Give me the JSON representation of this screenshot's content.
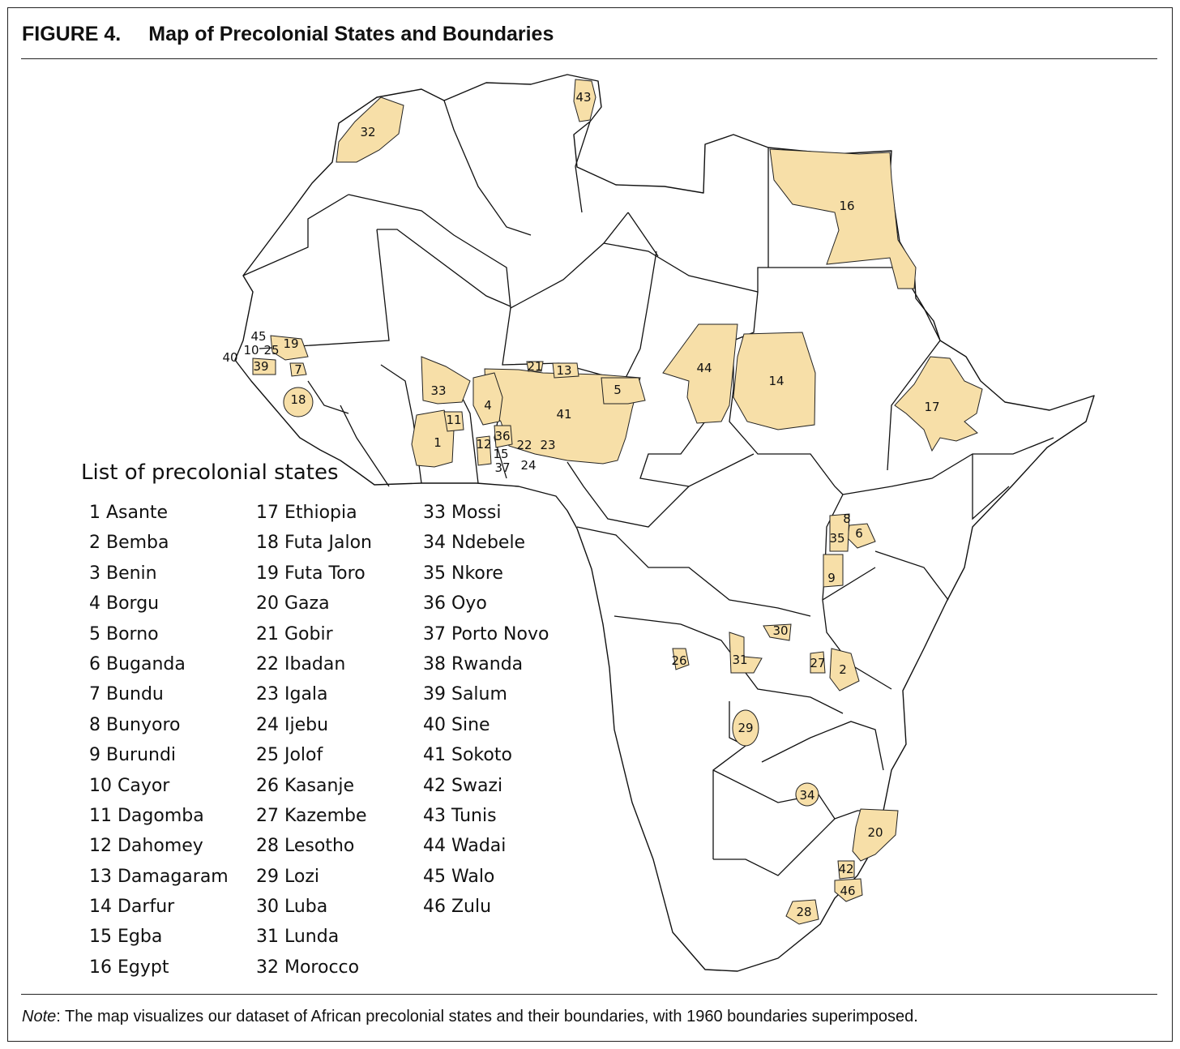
{
  "figure": {
    "number": "FIGURE 4.",
    "title": "Map of Precolonial States and Boundaries"
  },
  "note": {
    "prefix": "Note",
    "text": ": The map visualizes our dataset of African precolonial states and their boundaries, with 1960 boundaries superimposed."
  },
  "legend": {
    "title": "List of precolonial states",
    "columns": [
      [
        "1 Asante",
        "2 Bemba",
        "3 Benin",
        "4 Borgu",
        "5 Borno",
        "6 Buganda",
        "7 Bundu",
        "8 Bunyoro",
        "9 Burundi",
        "10 Cayor",
        "11 Dagomba",
        "12 Dahomey",
        "13 Damagaram",
        "14 Darfur",
        "15 Egba",
        "16 Egypt"
      ],
      [
        "17 Ethiopia",
        "18 Futa Jalon",
        "19 Futa Toro",
        "20 Gaza",
        "21 Gobir",
        "22 Ibadan",
        "23 Igala",
        "24 Ijebu",
        "25 Jolof",
        "26 Kasanje",
        "27 Kazembe",
        "28 Lesotho",
        "29 Lozi",
        "30 Luba",
        "31 Lunda",
        "32 Morocco"
      ],
      [
        "33 Mossi",
        "34 Ndebele",
        "35 Nkore",
        "36 Oyo",
        "37 Porto Novo",
        "38 Rwanda",
        "39 Salum",
        "40 Sine",
        "41 Sokoto",
        "42 Swazi",
        "43 Tunis",
        "44 Wadai",
        "45 Walo",
        "46 Zulu"
      ]
    ]
  },
  "map": {
    "state_fill": "#f7dfa8",
    "border_color": "#111111",
    "labels": [
      "1",
      "2",
      "4",
      "5",
      "6",
      "7",
      "8",
      "9",
      "10",
      "11",
      "12",
      "13",
      "14",
      "15",
      "16",
      "17",
      "18",
      "19",
      "20",
      "21",
      "22",
      "23",
      "24",
      "25",
      "26",
      "27",
      "28",
      "29",
      "30",
      "31",
      "32",
      "33",
      "34",
      "35",
      "36",
      "37",
      "39",
      "40",
      "41",
      "42",
      "43",
      "44",
      "45",
      "46"
    ]
  }
}
